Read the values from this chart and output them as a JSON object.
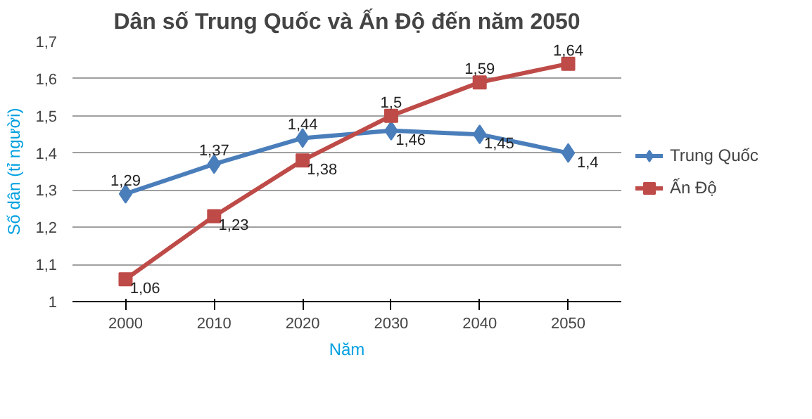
{
  "chart_data": {
    "type": "line",
    "title": "Dân số Trung Quốc và Ấn Độ đến năm 2050",
    "xlabel": "Năm",
    "ylabel": "Số dân (tỉ người)",
    "categories": [
      "2000",
      "2010",
      "2020",
      "2030",
      "2040",
      "2050"
    ],
    "series": [
      {
        "name": "Trung Quốc",
        "color": "#4a7ebb",
        "marker": "diamond",
        "values": [
          1.29,
          1.37,
          1.44,
          1.46,
          1.45,
          1.4
        ],
        "value_labels": [
          "1,29",
          "1,37",
          "1,44",
          "1,46",
          "1,45",
          "1,4"
        ]
      },
      {
        "name": "Ấn Độ",
        "color": "#be4b48",
        "marker": "square",
        "values": [
          1.06,
          1.23,
          1.38,
          1.5,
          1.59,
          1.64
        ],
        "value_labels": [
          "1,06",
          "1,23",
          "1,38",
          "1,5",
          "1,59",
          "1,64"
        ]
      }
    ],
    "ylim": [
      1,
      1.7
    ],
    "yticks": [
      {
        "value": 1,
        "label": "1"
      },
      {
        "value": 1.1,
        "label": "1,1"
      },
      {
        "value": 1.2,
        "label": "1,2"
      },
      {
        "value": 1.3,
        "label": "1,3"
      },
      {
        "value": 1.4,
        "label": "1,4"
      },
      {
        "value": 1.5,
        "label": "1,5"
      },
      {
        "value": 1.6,
        "label": "1,6"
      },
      {
        "value": 1.7,
        "label": "1,7"
      }
    ],
    "grid": "y",
    "legend": "right",
    "line_style": "solid"
  }
}
